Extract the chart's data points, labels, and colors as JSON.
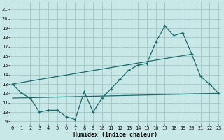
{
  "xlabel": "Humidex (Indice chaleur)",
  "bg_color": "#c8e8e8",
  "grid_color": "#a8cccc",
  "line_color": "#1a6b6b",
  "xlim": [
    -0.3,
    23.3
  ],
  "ylim": [
    8.7,
    21.8
  ],
  "yticks": [
    9,
    10,
    11,
    12,
    13,
    14,
    15,
    16,
    17,
    18,
    19,
    20,
    21
  ],
  "xticks": [
    0,
    1,
    2,
    3,
    4,
    5,
    6,
    7,
    8,
    9,
    10,
    11,
    12,
    13,
    14,
    15,
    16,
    17,
    18,
    19,
    20,
    21,
    22,
    23
  ],
  "line1_x": [
    0,
    1,
    2,
    3,
    4,
    5,
    6,
    7,
    8,
    9,
    10,
    11,
    12,
    13,
    14,
    15,
    16,
    17,
    18,
    19,
    20,
    21,
    22,
    23
  ],
  "line1_y": [
    13.0,
    12.0,
    11.5,
    10.0,
    10.2,
    10.2,
    9.5,
    9.2,
    12.2,
    10.0,
    11.5,
    12.5,
    13.5,
    14.5,
    15.0,
    15.2,
    17.5,
    19.2,
    18.2,
    18.5,
    16.2,
    13.8,
    13.0,
    12.0
  ],
  "line2_x": [
    0,
    20
  ],
  "line2_y": [
    13.0,
    16.2
  ],
  "line3_x": [
    0,
    23
  ],
  "line3_y": [
    11.5,
    12.0
  ],
  "xlabel_fontsize": 6.0,
  "tick_fontsize": 5.0
}
